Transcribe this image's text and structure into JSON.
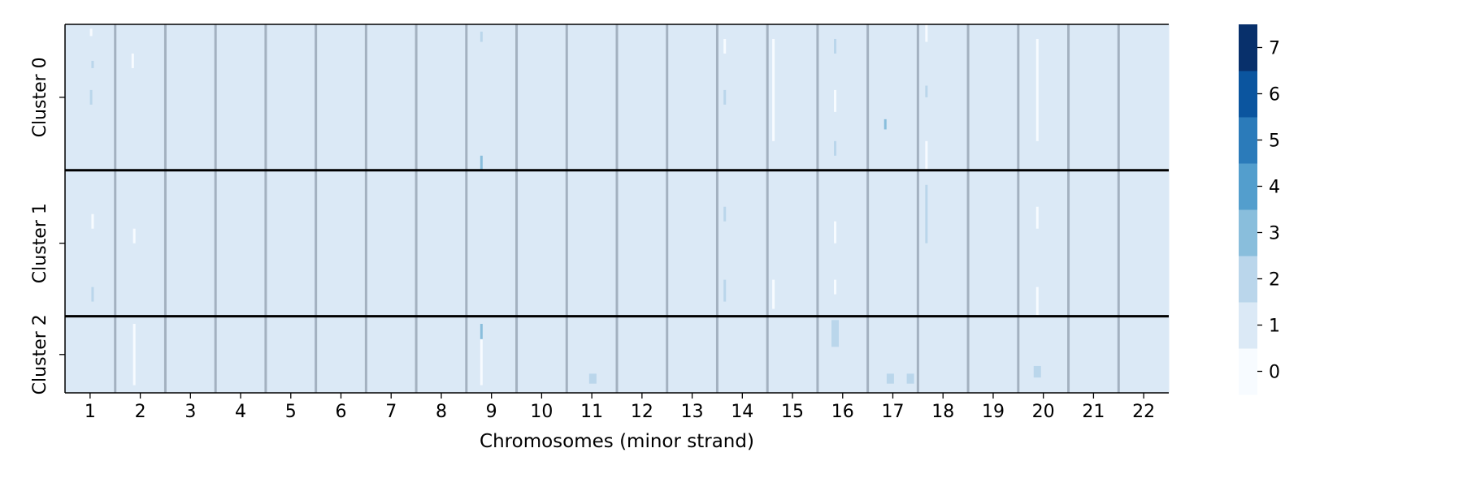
{
  "chart_data": {
    "type": "heatmap",
    "title": "",
    "xlabel": "Chromosomes (minor strand)",
    "ylabel": "",
    "x_categories": [
      "1",
      "2",
      "3",
      "4",
      "5",
      "6",
      "7",
      "8",
      "9",
      "10",
      "11",
      "12",
      "13",
      "14",
      "15",
      "16",
      "17",
      "18",
      "19",
      "20",
      "21",
      "22"
    ],
    "clusters": [
      "Cluster 0",
      "Cluster 1",
      "Cluster 2"
    ],
    "cluster_row_fractions": [
      0.396,
      0.396,
      0.208
    ],
    "background_copy_number": 1,
    "colorbar": {
      "labels": [
        "0",
        "1",
        "2",
        "3",
        "4",
        "5",
        "6",
        "7"
      ],
      "colors": [
        "#f7fbff",
        "#dbe9f6",
        "#bad6eb",
        "#89bedc",
        "#539ecd",
        "#2b7bba",
        "#0b559f",
        "#08306b"
      ],
      "range": [
        0,
        7
      ]
    },
    "features": [
      {
        "chromosome_pos": 1.02,
        "cluster": "Cluster 0",
        "value": 0,
        "row_span": [
          0.03,
          0.08
        ]
      },
      {
        "chromosome_pos": 1.05,
        "cluster": "Cluster 0",
        "value": 2,
        "row_span": [
          0.25,
          0.3
        ]
      },
      {
        "chromosome_pos": 1.02,
        "cluster": "Cluster 0",
        "value": 2,
        "row_span": [
          0.45,
          0.55
        ]
      },
      {
        "chromosome_pos": 1.05,
        "cluster": "Cluster 1",
        "value": 0,
        "row_span": [
          0.3,
          0.4
        ]
      },
      {
        "chromosome_pos": 1.05,
        "cluster": "Cluster 1",
        "value": 2,
        "row_span": [
          0.8,
          0.9
        ]
      },
      {
        "chromosome_pos": 1.85,
        "cluster": "Cluster 0",
        "value": 0,
        "row_span": [
          0.2,
          0.3
        ]
      },
      {
        "chromosome_pos": 1.88,
        "cluster": "Cluster 1",
        "value": 0,
        "row_span": [
          0.4,
          0.5
        ]
      },
      {
        "chromosome_pos": 1.88,
        "cluster": "Cluster 2",
        "value": 0,
        "row_span": [
          0.1,
          0.9
        ]
      },
      {
        "chromosome_pos": 8.8,
        "cluster": "Cluster 0",
        "value": 2,
        "row_span": [
          0.05,
          0.12
        ]
      },
      {
        "chromosome_pos": 8.8,
        "cluster": "Cluster 0",
        "value": 3,
        "row_span": [
          0.9,
          1.0
        ]
      },
      {
        "chromosome_pos": 8.8,
        "cluster": "Cluster 2",
        "value": 3,
        "row_span": [
          0.1,
          0.3
        ]
      },
      {
        "chromosome_pos": 8.8,
        "cluster": "Cluster 2",
        "value": 0,
        "row_span": [
          0.3,
          0.9
        ]
      },
      {
        "chromosome_pos": 11.02,
        "cluster": "Cluster 2",
        "value": 2,
        "row_span": [
          0.75,
          0.88
        ]
      },
      {
        "chromosome_pos": 13.65,
        "cluster": "Cluster 0",
        "value": 0,
        "row_span": [
          0.1,
          0.2
        ]
      },
      {
        "chromosome_pos": 13.65,
        "cluster": "Cluster 0",
        "value": 2,
        "row_span": [
          0.45,
          0.55
        ]
      },
      {
        "chromosome_pos": 13.65,
        "cluster": "Cluster 1",
        "value": 2,
        "row_span": [
          0.25,
          0.35
        ]
      },
      {
        "chromosome_pos": 13.65,
        "cluster": "Cluster 1",
        "value": 2,
        "row_span": [
          0.75,
          0.9
        ]
      },
      {
        "chromosome_pos": 14.62,
        "cluster": "Cluster 0",
        "value": 0,
        "row_span": [
          0.1,
          0.8
        ]
      },
      {
        "chromosome_pos": 14.62,
        "cluster": "Cluster 1",
        "value": 0,
        "row_span": [
          0.75,
          0.95
        ]
      },
      {
        "chromosome_pos": 15.85,
        "cluster": "Cluster 0",
        "value": 2,
        "row_span": [
          0.1,
          0.2
        ]
      },
      {
        "chromosome_pos": 15.85,
        "cluster": "Cluster 0",
        "value": 0,
        "row_span": [
          0.45,
          0.6
        ]
      },
      {
        "chromosome_pos": 15.85,
        "cluster": "Cluster 0",
        "value": 2,
        "row_span": [
          0.8,
          0.9
        ]
      },
      {
        "chromosome_pos": 15.85,
        "cluster": "Cluster 1",
        "value": 0,
        "row_span": [
          0.35,
          0.5
        ]
      },
      {
        "chromosome_pos": 15.85,
        "cluster": "Cluster 1",
        "value": 0,
        "row_span": [
          0.75,
          0.85
        ]
      },
      {
        "chromosome_pos": 15.85,
        "cluster": "Cluster 2",
        "value": 2,
        "row_span": [
          0.05,
          0.4
        ]
      },
      {
        "chromosome_pos": 16.85,
        "cluster": "Cluster 0",
        "value": 3,
        "row_span": [
          0.65,
          0.72
        ]
      },
      {
        "chromosome_pos": 16.95,
        "cluster": "Cluster 2",
        "value": 2,
        "row_span": [
          0.75,
          0.88
        ]
      },
      {
        "chromosome_pos": 17.35,
        "cluster": "Cluster 2",
        "value": 2,
        "row_span": [
          0.75,
          0.88
        ]
      },
      {
        "chromosome_pos": 17.67,
        "cluster": "Cluster 0",
        "value": 0,
        "row_span": [
          0.0,
          0.12
        ]
      },
      {
        "chromosome_pos": 17.67,
        "cluster": "Cluster 0",
        "value": 2,
        "row_span": [
          0.42,
          0.5
        ]
      },
      {
        "chromosome_pos": 17.67,
        "cluster": "Cluster 0",
        "value": 0,
        "row_span": [
          0.8,
          1.0
        ]
      },
      {
        "chromosome_pos": 17.67,
        "cluster": "Cluster 1",
        "value": 2,
        "row_span": [
          0.1,
          0.5
        ]
      },
      {
        "chromosome_pos": 19.88,
        "cluster": "Cluster 0",
        "value": 0,
        "row_span": [
          0.1,
          0.8
        ]
      },
      {
        "chromosome_pos": 19.88,
        "cluster": "Cluster 1",
        "value": 0,
        "row_span": [
          0.25,
          0.4
        ]
      },
      {
        "chromosome_pos": 19.88,
        "cluster": "Cluster 1",
        "value": 0,
        "row_span": [
          0.8,
          1.0
        ]
      },
      {
        "chromosome_pos": 19.88,
        "cluster": "Cluster 2",
        "value": 2,
        "row_span": [
          0.65,
          0.8
        ]
      }
    ],
    "grid": false,
    "legend_placement": "right"
  }
}
